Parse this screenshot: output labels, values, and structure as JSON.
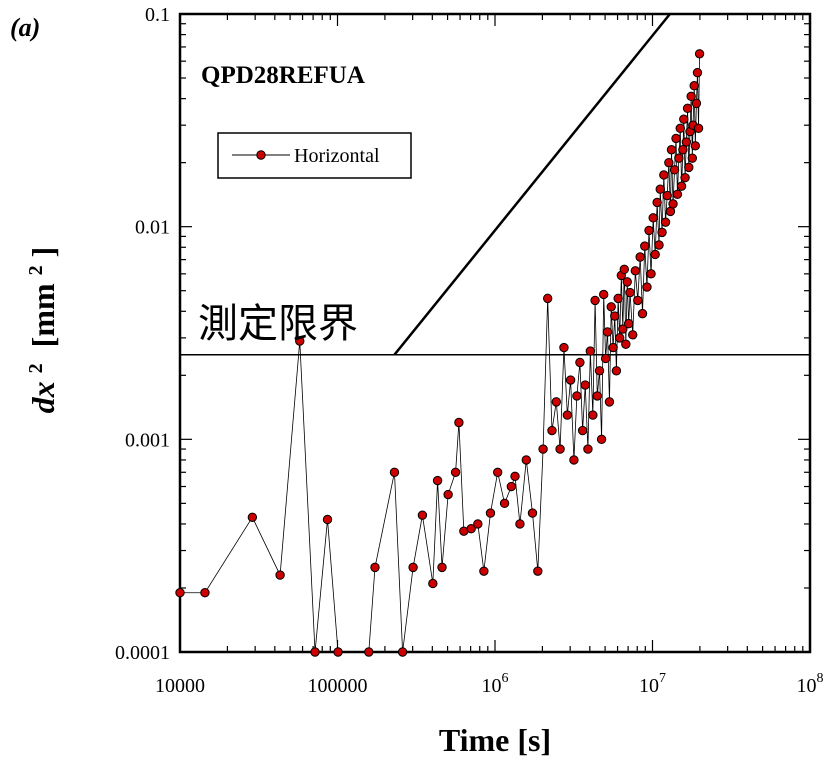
{
  "chart_data": {
    "type": "scatter",
    "panel_label": "(a)",
    "title": "QPD28REFUA",
    "xlabel": "Time [s]",
    "ylabel": "dx",
    "ylabel_exponent": "2",
    "ylabel_unit_bracket_open": "[mm",
    "ylabel_unit_exponent": "2",
    "ylabel_unit_bracket_close": "]",
    "x_scale": "log",
    "y_scale": "log",
    "xlim": [
      10000,
      100000000
    ],
    "ylim": [
      0.0001,
      0.1
    ],
    "x_ticks": [
      {
        "value": 10000,
        "base": "10000",
        "exp": ""
      },
      {
        "value": 100000,
        "base": "100000",
        "exp": ""
      },
      {
        "value": 1000000,
        "base": "10",
        "exp": "6"
      },
      {
        "value": 10000000,
        "base": "10",
        "exp": "7"
      },
      {
        "value": 100000000,
        "base": "10",
        "exp": "8"
      }
    ],
    "y_ticks": [
      {
        "value": 0.0001,
        "label": "0.0001"
      },
      {
        "value": 0.001,
        "label": "0.001"
      },
      {
        "value": 0.01,
        "label": "0.01"
      },
      {
        "value": 0.1,
        "label": "0.1"
      }
    ],
    "grid": false,
    "legend_position": "top-left",
    "series": [
      {
        "name": "Horizontal",
        "color": "#cc0000",
        "points": [
          [
            10000,
            0.00019
          ],
          [
            14400,
            0.00019
          ],
          [
            28800,
            0.00043
          ],
          [
            43200,
            0.00023
          ],
          [
            57600,
            0.0029
          ],
          [
            72000,
            0.0001
          ],
          [
            86400,
            0.00042
          ],
          [
            100800,
            0.0001
          ],
          [
            158000,
            0.0001
          ],
          [
            173000,
            0.00025
          ],
          [
            230000,
            0.0007
          ],
          [
            259000,
            0.0001
          ],
          [
            302000,
            0.00025
          ],
          [
            346000,
            0.00044
          ],
          [
            403000,
            0.00021
          ],
          [
            432000,
            0.00064
          ],
          [
            461000,
            0.00025
          ],
          [
            504000,
            0.00055
          ],
          [
            562000,
            0.0007
          ],
          [
            590000,
            0.0012
          ],
          [
            634000,
            0.00037
          ],
          [
            706000,
            0.00038
          ],
          [
            778000,
            0.0004
          ],
          [
            850000,
            0.00024
          ],
          [
            936000,
            0.00045
          ],
          [
            1040000,
            0.0007
          ],
          [
            1150000,
            0.0005
          ],
          [
            1270000,
            0.0006
          ],
          [
            1340000,
            0.00067
          ],
          [
            1440000,
            0.0004
          ],
          [
            1580000,
            0.0008
          ],
          [
            1730000,
            0.00045
          ],
          [
            1870000,
            0.00024
          ],
          [
            2020000,
            0.0009
          ],
          [
            2160000,
            0.0046
          ],
          [
            2300000,
            0.0011
          ],
          [
            2450000,
            0.0015
          ],
          [
            2590000,
            0.0009
          ],
          [
            2740000,
            0.0027
          ],
          [
            2880000,
            0.0013
          ],
          [
            3020000,
            0.0019
          ],
          [
            3170000,
            0.0008
          ],
          [
            3310000,
            0.0016
          ],
          [
            3460000,
            0.0023
          ],
          [
            3600000,
            0.0011
          ],
          [
            3740000,
            0.0018
          ],
          [
            3890000,
            0.0009
          ],
          [
            4030000,
            0.0026
          ],
          [
            4180000,
            0.0013
          ],
          [
            4320000,
            0.0045
          ],
          [
            4460000,
            0.0016
          ],
          [
            4610000,
            0.0021
          ],
          [
            4750000,
            0.001
          ],
          [
            4900000,
            0.0048
          ],
          [
            5040000,
            0.0024
          ],
          [
            5180000,
            0.0032
          ],
          [
            5330000,
            0.0015
          ],
          [
            5470000,
            0.0042
          ],
          [
            5620000,
            0.0027
          ],
          [
            5760000,
            0.0038
          ],
          [
            5900000,
            0.0021
          ],
          [
            6050000,
            0.0046
          ],
          [
            6190000,
            0.003
          ],
          [
            6340000,
            0.0059
          ],
          [
            6480000,
            0.0033
          ],
          [
            6620000,
            0.0063
          ],
          [
            6770000,
            0.0028
          ],
          [
            6910000,
            0.0055
          ],
          [
            7060000,
            0.0035
          ],
          [
            7200000,
            0.0049
          ],
          [
            7490000,
            0.0031
          ],
          [
            7780000,
            0.0062
          ],
          [
            8060000,
            0.0045
          ],
          [
            8350000,
            0.0072
          ],
          [
            8640000,
            0.0039
          ],
          [
            8930000,
            0.0081
          ],
          [
            9220000,
            0.0052
          ],
          [
            9500000,
            0.0096
          ],
          [
            9790000,
            0.006
          ],
          [
            10100000,
            0.011
          ],
          [
            10400000,
            0.0074
          ],
          [
            10700000,
            0.013
          ],
          [
            11000000,
            0.0082
          ],
          [
            11200000,
            0.015
          ],
          [
            11500000,
            0.0094
          ],
          [
            11800000,
            0.0175
          ],
          [
            12100000,
            0.0105
          ],
          [
            12400000,
            0.014
          ],
          [
            12700000,
            0.02
          ],
          [
            13000000,
            0.0118
          ],
          [
            13200000,
            0.023
          ],
          [
            13500000,
            0.0128
          ],
          [
            13800000,
            0.0185
          ],
          [
            14100000,
            0.026
          ],
          [
            14400000,
            0.0142
          ],
          [
            14700000,
            0.021
          ],
          [
            15000000,
            0.029
          ],
          [
            15300000,
            0.0155
          ],
          [
            15600000,
            0.023
          ],
          [
            15800000,
            0.032
          ],
          [
            16100000,
            0.017
          ],
          [
            16400000,
            0.025
          ],
          [
            16700000,
            0.036
          ],
          [
            17000000,
            0.019
          ],
          [
            17300000,
            0.028
          ],
          [
            17600000,
            0.041
          ],
          [
            17900000,
            0.021
          ],
          [
            18100000,
            0.03
          ],
          [
            18400000,
            0.046
          ],
          [
            18700000,
            0.024
          ],
          [
            19000000,
            0.038
          ],
          [
            19300000,
            0.053
          ],
          [
            19600000,
            0.029
          ],
          [
            19900000,
            0.065
          ]
        ]
      }
    ],
    "annotations": [
      {
        "text": "測定限界",
        "type": "horizontal_line",
        "y": 0.0025
      },
      {
        "type": "slope_line",
        "from": [
          230000,
          0.0025
        ],
        "to": [
          12900000,
          0.1
        ]
      }
    ]
  }
}
